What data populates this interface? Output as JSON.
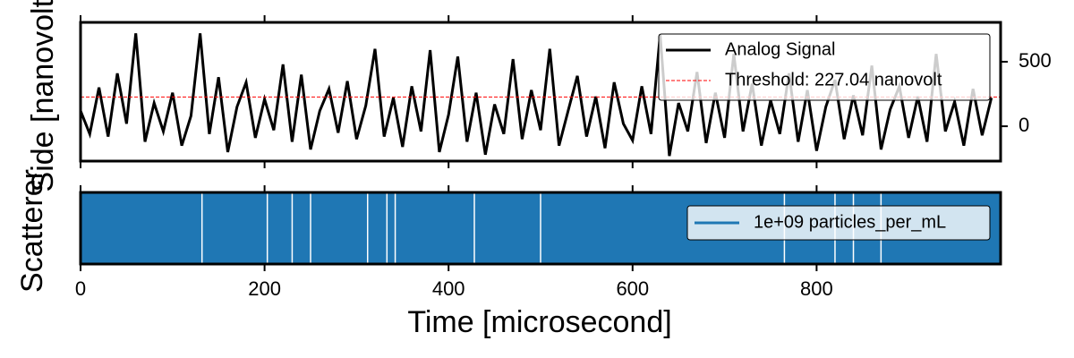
{
  "chart_data": [
    {
      "type": "line",
      "ylabel": "Side [nanovolt]",
      "x": [
        0,
        10,
        20,
        30,
        40,
        50,
        60,
        70,
        80,
        90,
        100,
        110,
        120,
        130,
        140,
        150,
        160,
        170,
        180,
        190,
        200,
        210,
        220,
        230,
        240,
        250,
        260,
        270,
        280,
        290,
        300,
        310,
        320,
        330,
        340,
        350,
        360,
        370,
        380,
        390,
        400,
        410,
        420,
        430,
        440,
        450,
        460,
        470,
        480,
        490,
        500,
        510,
        520,
        530,
        540,
        550,
        560,
        570,
        580,
        590,
        600,
        610,
        620,
        630,
        640,
        650,
        660,
        670,
        680,
        690,
        700,
        710,
        720,
        730,
        740,
        750,
        760,
        770,
        780,
        790,
        800,
        810,
        820,
        830,
        840,
        850,
        860,
        870,
        880,
        890,
        900,
        910,
        920,
        930,
        940,
        950,
        960,
        970,
        980,
        990
      ],
      "series": [
        {
          "name": "Analog Signal",
          "color": "#000000",
          "values": [
            120,
            -60,
            300,
            -80,
            410,
            20,
            720,
            -120,
            180,
            -40,
            260,
            -150,
            80,
            720,
            -60,
            380,
            -200,
            150,
            340,
            -90,
            210,
            -30,
            480,
            -120,
            400,
            -180,
            120,
            290,
            -50,
            350,
            -100,
            160,
            600,
            -80,
            220,
            -160,
            310,
            -40,
            590,
            -200,
            90,
            540,
            -120,
            260,
            -220,
            170,
            -60,
            520,
            -100,
            280,
            -30,
            600,
            -150,
            120,
            390,
            -80,
            230,
            -170,
            340,
            20,
            -110,
            310,
            -60,
            710,
            -230,
            180,
            -40,
            420,
            -130,
            260,
            -90,
            560,
            -40,
            330,
            -150,
            200,
            -60,
            410,
            -120,
            280,
            -190,
            150,
            360,
            -100,
            240,
            -70,
            470,
            -180,
            130,
            310,
            -90,
            230,
            -120,
            560,
            -40,
            190,
            -150,
            290,
            -70,
            220
          ]
        },
        {
          "name": "Threshold: 227.04 nanovolt",
          "color": "#ff0000",
          "threshold": 227.04
        }
      ],
      "xlim": [
        0,
        1000
      ],
      "ylim": [
        -270,
        805
      ],
      "yticks": [
        0,
        500
      ],
      "legend": "upper right"
    },
    {
      "type": "events",
      "ylabel": "Scatterer",
      "xlabel": "Time [microsecond]",
      "series": [
        {
          "name": "1e+09 particles_per_mL",
          "color": "#1f77b4",
          "x": [
            132,
            203,
            230,
            250,
            312,
            333,
            342,
            428,
            500,
            765,
            820,
            840,
            870
          ]
        }
      ],
      "xlim": [
        0,
        1000
      ],
      "xticks": [
        0,
        200,
        400,
        600,
        800
      ],
      "legend": "right"
    }
  ]
}
